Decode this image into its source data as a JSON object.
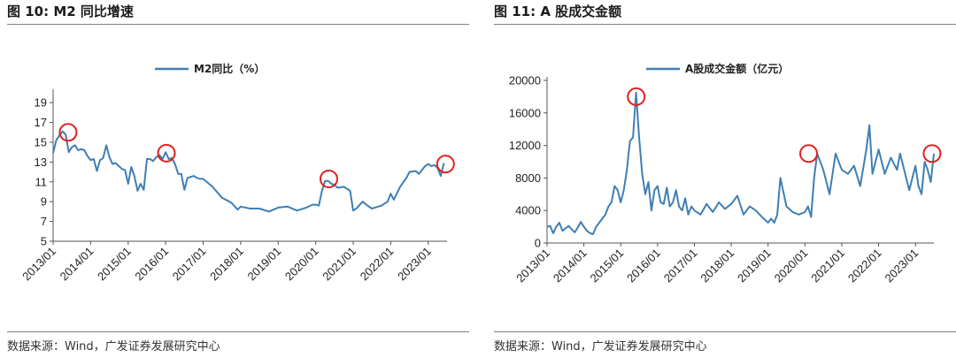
{
  "source_note": "数据来源：Wind，广发证券发展研究中心",
  "charts": [
    {
      "figure_title": "图 10:  M2 同比增速",
      "chart_data": {
        "type": "line",
        "legend": "M2同比（%）",
        "line_color": "#3f7fb4",
        "marker_color": "#e02020",
        "ylim": [
          5,
          20
        ],
        "yticks": [
          5,
          7,
          9,
          11,
          13,
          15,
          17,
          19
        ],
        "xlim": [
          2013.0,
          2023.5
        ],
        "xticks": [
          "2013/01",
          "2014/01",
          "2015/01",
          "2016/01",
          "2017/01",
          "2018/01",
          "2019/01",
          "2020/01",
          "2021/01",
          "2022/01",
          "2023/01"
        ],
        "x": [
          2013.0,
          2013.083,
          2013.167,
          2013.25,
          2013.333,
          2013.417,
          2013.5,
          2013.583,
          2013.667,
          2013.75,
          2013.833,
          2013.917,
          2014.0,
          2014.083,
          2014.167,
          2014.25,
          2014.333,
          2014.417,
          2014.5,
          2014.583,
          2014.667,
          2014.75,
          2014.833,
          2014.917,
          2015.0,
          2015.083,
          2015.167,
          2015.25,
          2015.333,
          2015.417,
          2015.5,
          2015.583,
          2015.667,
          2015.75,
          2015.833,
          2015.917,
          2016.0,
          2016.083,
          2016.167,
          2016.25,
          2016.333,
          2016.417,
          2016.5,
          2016.583,
          2016.667,
          2016.75,
          2016.833,
          2016.917,
          2017.0,
          2017.25,
          2017.5,
          2017.75,
          2017.917,
          2018.0,
          2018.25,
          2018.5,
          2018.75,
          2019.0,
          2019.25,
          2019.5,
          2019.75,
          2019.917,
          2020.0,
          2020.083,
          2020.167,
          2020.25,
          2020.333,
          2020.417,
          2020.5,
          2020.583,
          2020.75,
          2020.917,
          2021.0,
          2021.083,
          2021.25,
          2021.417,
          2021.5,
          2021.75,
          2021.917,
          2022.0,
          2022.083,
          2022.25,
          2022.417,
          2022.5,
          2022.667,
          2022.75,
          2022.917,
          2023.0,
          2023.083,
          2023.167,
          2023.25,
          2023.333,
          2023.417
        ],
        "values": [
          13.9,
          15.2,
          15.7,
          16.1,
          15.8,
          14.0,
          14.5,
          14.7,
          14.2,
          14.3,
          14.2,
          13.6,
          13.2,
          13.3,
          12.1,
          13.2,
          13.4,
          14.7,
          13.5,
          12.8,
          12.9,
          12.6,
          12.3,
          12.2,
          10.8,
          12.5,
          11.6,
          10.1,
          10.8,
          10.2,
          13.3,
          13.3,
          13.1,
          13.5,
          13.7,
          13.3,
          14.0,
          13.3,
          13.4,
          12.8,
          11.8,
          11.8,
          10.2,
          11.4,
          11.5,
          11.6,
          11.4,
          11.3,
          11.3,
          10.5,
          9.4,
          8.9,
          8.2,
          8.5,
          8.3,
          8.3,
          8.0,
          8.4,
          8.5,
          8.1,
          8.4,
          8.7,
          8.7,
          8.6,
          10.1,
          11.1,
          11.1,
          10.8,
          10.7,
          10.4,
          10.5,
          10.1,
          8.1,
          8.3,
          9.0,
          8.5,
          8.3,
          8.6,
          9.0,
          9.8,
          9.2,
          10.5,
          11.4,
          12.0,
          12.1,
          11.8,
          12.6,
          12.8,
          12.6,
          12.7,
          12.4,
          11.6,
          12.9
        ],
        "highlights": [
          [
            2013.4,
            16.0
          ],
          [
            2016.02,
            13.9
          ],
          [
            2020.35,
            11.3
          ],
          [
            2023.46,
            12.8
          ]
        ]
      }
    },
    {
      "figure_title": "图 11:  A 股成交金额",
      "chart_data": {
        "type": "line",
        "legend": "A股成交金额（亿元）",
        "line_color": "#3f7fb4",
        "marker_color": "#e02020",
        "ylim": [
          0,
          20000
        ],
        "yticks": [
          0,
          4000,
          8000,
          12000,
          16000,
          20000
        ],
        "xlim": [
          2013.0,
          2023.5
        ],
        "xticks": [
          "2013/01",
          "2014/01",
          "2015/01",
          "2016/01",
          "2017/01",
          "2018/01",
          "2019/01",
          "2020/01",
          "2021/01",
          "2022/01",
          "2023/01"
        ],
        "x": [
          2013.0,
          2013.083,
          2013.167,
          2013.25,
          2013.333,
          2013.417,
          2013.5,
          2013.583,
          2013.667,
          2013.75,
          2013.833,
          2013.917,
          2014.0,
          2014.083,
          2014.167,
          2014.25,
          2014.333,
          2014.417,
          2014.5,
          2014.583,
          2014.667,
          2014.75,
          2014.833,
          2014.917,
          2015.0,
          2015.083,
          2015.167,
          2015.25,
          2015.333,
          2015.417,
          2015.5,
          2015.583,
          2015.667,
          2015.75,
          2015.833,
          2015.917,
          2016.0,
          2016.083,
          2016.167,
          2016.25,
          2016.333,
          2016.417,
          2016.5,
          2016.583,
          2016.667,
          2016.75,
          2016.833,
          2016.917,
          2017.0,
          2017.167,
          2017.333,
          2017.5,
          2017.667,
          2017.833,
          2018.0,
          2018.167,
          2018.333,
          2018.5,
          2018.667,
          2018.833,
          2019.0,
          2019.083,
          2019.167,
          2019.25,
          2019.333,
          2019.5,
          2019.667,
          2019.833,
          2020.0,
          2020.083,
          2020.167,
          2020.25,
          2020.333,
          2020.5,
          2020.583,
          2020.667,
          2020.833,
          2021.0,
          2021.167,
          2021.333,
          2021.5,
          2021.667,
          2021.75,
          2021.833,
          2022.0,
          2022.167,
          2022.333,
          2022.5,
          2022.583,
          2022.667,
          2022.833,
          2023.0,
          2023.083,
          2023.167,
          2023.25,
          2023.333,
          2023.417,
          2023.5
        ],
        "values": [
          2000,
          2100,
          1200,
          2000,
          2500,
          1500,
          1800,
          2100,
          1700,
          1300,
          1900,
          2600,
          2000,
          1500,
          1200,
          1100,
          2000,
          2500,
          3000,
          3500,
          4500,
          5000,
          7000,
          6500,
          5000,
          6500,
          9000,
          12500,
          13000,
          18500,
          13000,
          8500,
          6000,
          7500,
          4000,
          6500,
          7000,
          5000,
          4800,
          6800,
          4500,
          5000,
          6500,
          4500,
          4000,
          5500,
          3500,
          4500,
          4000,
          3500,
          4800,
          3800,
          5000,
          4200,
          4800,
          5800,
          3500,
          4500,
          4000,
          3200,
          2500,
          3000,
          2500,
          3500,
          8000,
          4500,
          3800,
          3500,
          3800,
          4500,
          3200,
          8000,
          11000,
          9000,
          7500,
          6000,
          11000,
          9000,
          8500,
          9500,
          7000,
          11500,
          14500,
          8500,
          11500,
          8500,
          10500,
          9000,
          11000,
          9500,
          6500,
          9500,
          7000,
          6000,
          10000,
          9000,
          7500,
          11000
        ],
        "highlights": [
          [
            2015.42,
            18000
          ],
          [
            2020.1,
            11000
          ],
          [
            2023.45,
            11000
          ]
        ]
      }
    }
  ]
}
